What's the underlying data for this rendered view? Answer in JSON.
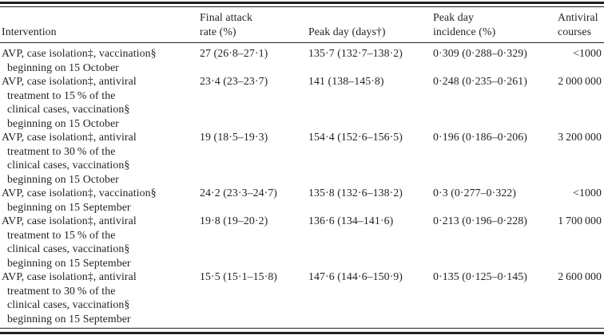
{
  "theme": {
    "ink": "#231f20",
    "background": "#ffffff"
  },
  "table": {
    "headers": {
      "intervention": "Intervention",
      "final_attack_rate": "Final attack\nrate (%)",
      "peak_day": "Peak day (days†)",
      "peak_day_incidence": "Peak day\nincidence (%)",
      "antiviral_courses": "Antiviral\ncourses"
    },
    "rows": [
      {
        "intervention": "AVP, case isolation‡, vaccination§\nbeginning on 15 October",
        "final_attack_rate": "27 (26·8–27·1)",
        "peak_day": "135·7 (132·7–138·2)",
        "peak_day_incidence": "0·309 (0·288–0·329)",
        "antiviral_courses": "<1000"
      },
      {
        "intervention": "AVP, case isolation‡, antiviral\ntreatment to 15 % of the\nclinical cases, vaccination§\nbeginning on 15 October",
        "final_attack_rate": "23·4 (23–23·7)",
        "peak_day": "141 (138–145·8)",
        "peak_day_incidence": "0·248 (0·235–0·261)",
        "antiviral_courses": "2 000 000"
      },
      {
        "intervention": "AVP, case isolation‡, antiviral\ntreatment to 30 % of the\nclinical cases, vaccination§\nbeginning on 15 October",
        "final_attack_rate": "19 (18·5–19·3)",
        "peak_day": "154·4 (152·6–156·5)",
        "peak_day_incidence": "0·196 (0·186–0·206)",
        "antiviral_courses": "3 200 000"
      },
      {
        "intervention": "AVP, case isolation‡, vaccination§\nbeginning on 15 September",
        "final_attack_rate": "24·2 (23·3–24·7)",
        "peak_day": "135·8 (132·6–138·2)",
        "peak_day_incidence": "0·3 (0·277–0·322)",
        "antiviral_courses": "<1000"
      },
      {
        "intervention": "AVP, case isolation‡, antiviral\ntreatment to 15 % of the\nclinical cases, vaccination§\nbeginning on 15 September",
        "final_attack_rate": "19·8 (19–20·2)",
        "peak_day": "136·6 (134–141·6)",
        "peak_day_incidence": "0·213 (0·196–0·228)",
        "antiviral_courses": "1 700 000"
      },
      {
        "intervention": "AVP, case isolation‡, antiviral\ntreatment to 30 % of the\nclinical cases, vaccination§\nbeginning on 15 September",
        "final_attack_rate": "15·5 (15·1–15·8)",
        "peak_day": "147·6 (144·6–150·9)",
        "peak_day_incidence": "0·135 (0·125–0·145)",
        "antiviral_courses": "2 600 000"
      }
    ]
  }
}
